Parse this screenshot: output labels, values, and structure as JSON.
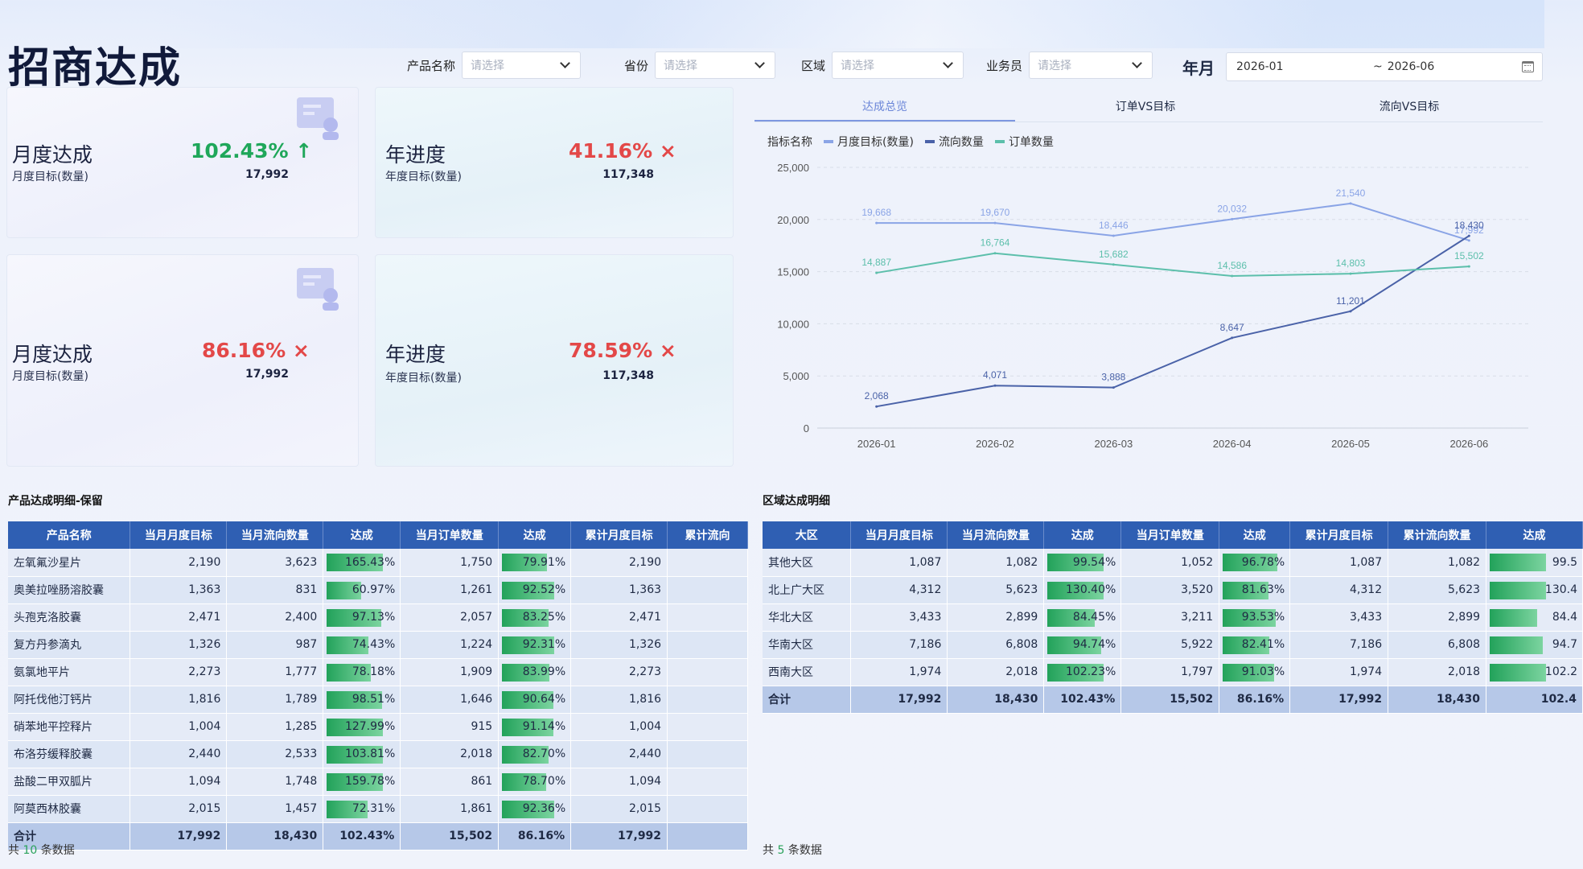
{
  "page": {
    "title": "招商达成"
  },
  "filters": [
    {
      "label": "产品名称",
      "placeholder": "请选择"
    },
    {
      "label": "省份",
      "placeholder": "请选择"
    },
    {
      "label": "区域",
      "placeholder": "请选择"
    },
    {
      "label": "业务员",
      "placeholder": "请选择"
    }
  ],
  "date_range": {
    "label": "年月",
    "start": "2026-01",
    "sep": "~",
    "end": "2026-06"
  },
  "cards": [
    {
      "name": "月度达成",
      "sub": "月度目标(数量)",
      "pct": "102.43%",
      "trend": "up",
      "value": "17,992"
    },
    {
      "name": "年进度",
      "sub": "年度目标(数量)",
      "pct": "41.16%",
      "trend": "down",
      "value": "117,348"
    },
    {
      "name": "月度达成",
      "sub": "月度目标(数量)",
      "pct": "86.16%",
      "trend": "down",
      "value": "17,992"
    },
    {
      "name": "年进度",
      "sub": "年度目标(数量)",
      "pct": "78.59%",
      "trend": "down",
      "value": "117,348"
    }
  ],
  "tabs": [
    "达成总览",
    "订单VS目标",
    "流向VS目标"
  ],
  "legend_title": "指标名称",
  "colors": {
    "target": "#8aa4e6",
    "flow": "#4a62a8",
    "order": "#5cbfab",
    "header": "#2f5fb3",
    "up": "#1fa75a",
    "down": "#e34848"
  },
  "chart_data": {
    "type": "line",
    "x": [
      "2026-01",
      "2026-02",
      "2026-03",
      "2026-04",
      "2026-05",
      "2026-06"
    ],
    "ylim": [
      0,
      25000
    ],
    "yticks": [
      "25,000",
      "20,000",
      "15,000",
      "10,000",
      "5,000",
      "0"
    ],
    "ytick_values": [
      25000,
      20000,
      15000,
      10000,
      5000,
      0
    ],
    "series": [
      {
        "name": "月度目标(数量)",
        "color": "#8aa4e6",
        "values": [
          19668,
          19670,
          18446,
          20032,
          21540,
          17992
        ]
      },
      {
        "name": "流向数量",
        "color": "#4a62a8",
        "values": [
          2068,
          4071,
          3888,
          8647,
          11201,
          18430
        ]
      },
      {
        "name": "订单数量",
        "color": "#5cbfab",
        "values": [
          14887,
          16764,
          15682,
          14586,
          14803,
          15502
        ]
      }
    ],
    "grid": true,
    "legend": "top-left"
  },
  "product_table": {
    "title": "产品达成明细-保留",
    "headers": [
      "产品名称",
      "当月月度目标",
      "当月流向数量",
      "达成",
      "当月订单数量",
      "达成",
      "累计月度目标",
      "累计流向"
    ],
    "rows": [
      {
        "name": "左氧氟沙星片",
        "t": "2,190",
        "f": "3,623",
        "fr": "165.43%",
        "fv": 1.0,
        "o": "1,750",
        "or": "79.91%",
        "ov": 0.7991,
        "ct": "2,190"
      },
      {
        "name": "奥美拉唑肠溶胶囊",
        "t": "1,363",
        "f": "831",
        "fr": "60.97%",
        "fv": 0.6097,
        "o": "1,261",
        "or": "92.52%",
        "ov": 0.9252,
        "ct": "1,363"
      },
      {
        "name": "头孢克洛胶囊",
        "t": "2,471",
        "f": "2,400",
        "fr": "97.13%",
        "fv": 0.9713,
        "o": "2,057",
        "or": "83.25%",
        "ov": 0.8325,
        "ct": "2,471"
      },
      {
        "name": "复方丹参滴丸",
        "t": "1,326",
        "f": "987",
        "fr": "74.43%",
        "fv": 0.7443,
        "o": "1,224",
        "or": "92.31%",
        "ov": 0.9231,
        "ct": "1,326"
      },
      {
        "name": "氨氯地平片",
        "t": "2,273",
        "f": "1,777",
        "fr": "78.18%",
        "fv": 0.7818,
        "o": "1,909",
        "or": "83.99%",
        "ov": 0.8399,
        "ct": "2,273"
      },
      {
        "name": "阿托伐他汀钙片",
        "t": "1,816",
        "f": "1,789",
        "fr": "98.51%",
        "fv": 0.9851,
        "o": "1,646",
        "or": "90.64%",
        "ov": 0.9064,
        "ct": "1,816"
      },
      {
        "name": "硝苯地平控释片",
        "t": "1,004",
        "f": "1,285",
        "fr": "127.99%",
        "fv": 1.0,
        "o": "915",
        "or": "91.14%",
        "ov": 0.9114,
        "ct": "1,004"
      },
      {
        "name": "布洛芬缓释胶囊",
        "t": "2,440",
        "f": "2,533",
        "fr": "103.81%",
        "fv": 1.0,
        "o": "2,018",
        "or": "82.70%",
        "ov": 0.827,
        "ct": "2,440"
      },
      {
        "name": "盐酸二甲双胍片",
        "t": "1,094",
        "f": "1,748",
        "fr": "159.78%",
        "fv": 1.0,
        "o": "861",
        "or": "78.70%",
        "ov": 0.787,
        "ct": "1,094"
      },
      {
        "name": "阿莫西林胶囊",
        "t": "2,015",
        "f": "1,457",
        "fr": "72.31%",
        "fv": 0.7231,
        "o": "1,861",
        "or": "92.36%",
        "ov": 0.9236,
        "ct": "2,015"
      }
    ],
    "total": {
      "name": "合计",
      "t": "17,992",
      "f": "18,430",
      "fr": "102.43%",
      "o": "15,502",
      "or": "86.16%",
      "ct": "17,992"
    },
    "footer_prefix": "共",
    "count": "10",
    "footer_suffix": "条数据"
  },
  "region_table": {
    "title": "区域达成明细",
    "headers": [
      "大区",
      "当月月度目标",
      "当月流向数量",
      "达成",
      "当月订单数量",
      "达成",
      "累计月度目标",
      "累计流向数量",
      "达成"
    ],
    "rows": [
      {
        "name": "其他大区",
        "t": "1,087",
        "f": "1,082",
        "fr": "99.54%",
        "fv": 0.9954,
        "o": "1,052",
        "or": "96.78%",
        "ov": 0.9678,
        "ct": "1,087",
        "cf": "1,082",
        "cr": "99.5",
        "cv": 0.995
      },
      {
        "name": "北上广大区",
        "t": "4,312",
        "f": "5,623",
        "fr": "130.40%",
        "fv": 1.0,
        "o": "3,520",
        "or": "81.63%",
        "ov": 0.8163,
        "ct": "4,312",
        "cf": "5,623",
        "cr": "130.4",
        "cv": 1.0
      },
      {
        "name": "华北大区",
        "t": "3,433",
        "f": "2,899",
        "fr": "84.45%",
        "fv": 0.8445,
        "o": "3,211",
        "or": "93.53%",
        "ov": 0.9353,
        "ct": "3,433",
        "cf": "2,899",
        "cr": "84.4",
        "cv": 0.844
      },
      {
        "name": "华南大区",
        "t": "7,186",
        "f": "6,808",
        "fr": "94.74%",
        "fv": 0.9474,
        "o": "5,922",
        "or": "82.41%",
        "ov": 0.8241,
        "ct": "7,186",
        "cf": "6,808",
        "cr": "94.7",
        "cv": 0.947
      },
      {
        "name": "西南大区",
        "t": "1,974",
        "f": "2,018",
        "fr": "102.23%",
        "fv": 1.0,
        "o": "1,797",
        "or": "91.03%",
        "ov": 0.9103,
        "ct": "1,974",
        "cf": "2,018",
        "cr": "102.2",
        "cv": 1.0
      }
    ],
    "total": {
      "name": "合计",
      "t": "17,992",
      "f": "18,430",
      "fr": "102.43%",
      "o": "15,502",
      "or": "86.16%",
      "ct": "17,992",
      "cf": "18,430",
      "cr": "102.4"
    },
    "footer_prefix": "共",
    "count": "5",
    "footer_suffix": "条数据"
  }
}
